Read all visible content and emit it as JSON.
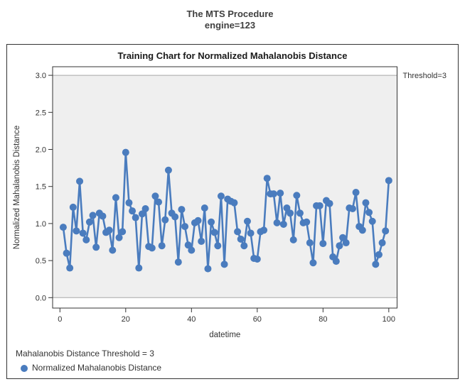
{
  "header": {
    "line1": "The MTS Procedure",
    "line2": "engine=123"
  },
  "chart_data": {
    "type": "line",
    "title": "Training Chart for Normalized Mahalanobis Distance",
    "xlabel": "datetime",
    "ylabel": "Normalized Mahalanobis Distance",
    "threshold": 3,
    "threshold_label": "Threshold=3",
    "x_ticks": [
      0,
      20,
      40,
      60,
      80,
      100
    ],
    "y_ticks": [
      "0.0",
      "0.5",
      "1.0",
      "1.5",
      "2.0",
      "2.5",
      "3.0"
    ],
    "ylim": [
      0,
      3.12
    ],
    "xlim": [
      -2.2,
      102.3
    ],
    "series_name": "Normalized Mahalanobis Distance",
    "x": [
      1,
      2,
      3,
      4,
      5,
      6,
      7,
      8,
      9,
      10,
      11,
      12,
      13,
      14,
      15,
      16,
      17,
      18,
      19,
      20,
      21,
      22,
      23,
      24,
      25,
      26,
      27,
      28,
      29,
      30,
      31,
      32,
      33,
      34,
      35,
      36,
      37,
      38,
      39,
      40,
      41,
      42,
      43,
      44,
      45,
      46,
      47,
      48,
      49,
      50,
      51,
      52,
      53,
      54,
      55,
      56,
      57,
      58,
      59,
      60,
      61,
      62,
      63,
      64,
      65,
      66,
      67,
      68,
      69,
      70,
      71,
      72,
      73,
      74,
      75,
      76,
      77,
      78,
      79,
      80,
      81,
      82,
      83,
      84,
      85,
      86,
      87,
      88,
      89,
      90,
      91,
      92,
      93,
      94,
      95,
      96,
      97,
      98,
      99,
      100
    ],
    "values": [
      0.95,
      0.6,
      0.4,
      1.22,
      0.9,
      1.57,
      0.87,
      0.78,
      1.02,
      1.11,
      0.68,
      1.14,
      1.1,
      0.88,
      0.91,
      0.64,
      1.35,
      0.81,
      0.89,
      1.96,
      1.28,
      1.17,
      1.08,
      0.4,
      1.13,
      1.2,
      0.69,
      0.67,
      1.37,
      1.29,
      0.7,
      1.05,
      1.72,
      1.14,
      1.09,
      0.48,
      1.19,
      0.96,
      0.71,
      0.64,
      1.01,
      1.04,
      0.76,
      1.21,
      0.39,
      1.02,
      0.88,
      0.7,
      1.37,
      0.45,
      1.33,
      1.3,
      1.28,
      0.89,
      0.79,
      0.7,
      1.03,
      0.87,
      0.53,
      0.52,
      0.89,
      0.91,
      1.61,
      1.4,
      1.4,
      1.01,
      1.41,
      0.99,
      1.21,
      1.14,
      0.78,
      1.38,
      1.14,
      1.01,
      1.02,
      0.74,
      0.47,
      1.24,
      1.24,
      0.73,
      1.31,
      1.27,
      0.55,
      0.49,
      0.7,
      0.81,
      0.74,
      1.21,
      1.2,
      1.42,
      0.96,
      0.91,
      1.28,
      1.15,
      1.03,
      0.45,
      0.58,
      0.74,
      0.9,
      1.58
    ],
    "series_color": "#4A7CBE",
    "band_color": "#EFEFEF",
    "band_edge_color": "#A8A8A8",
    "frame_color": "#333333",
    "axis_text_color": "#333333"
  },
  "legend": {
    "note": "Mahalanobis Distance Threshold = 3",
    "series_label": "Normalized Mahalanobis Distance"
  }
}
